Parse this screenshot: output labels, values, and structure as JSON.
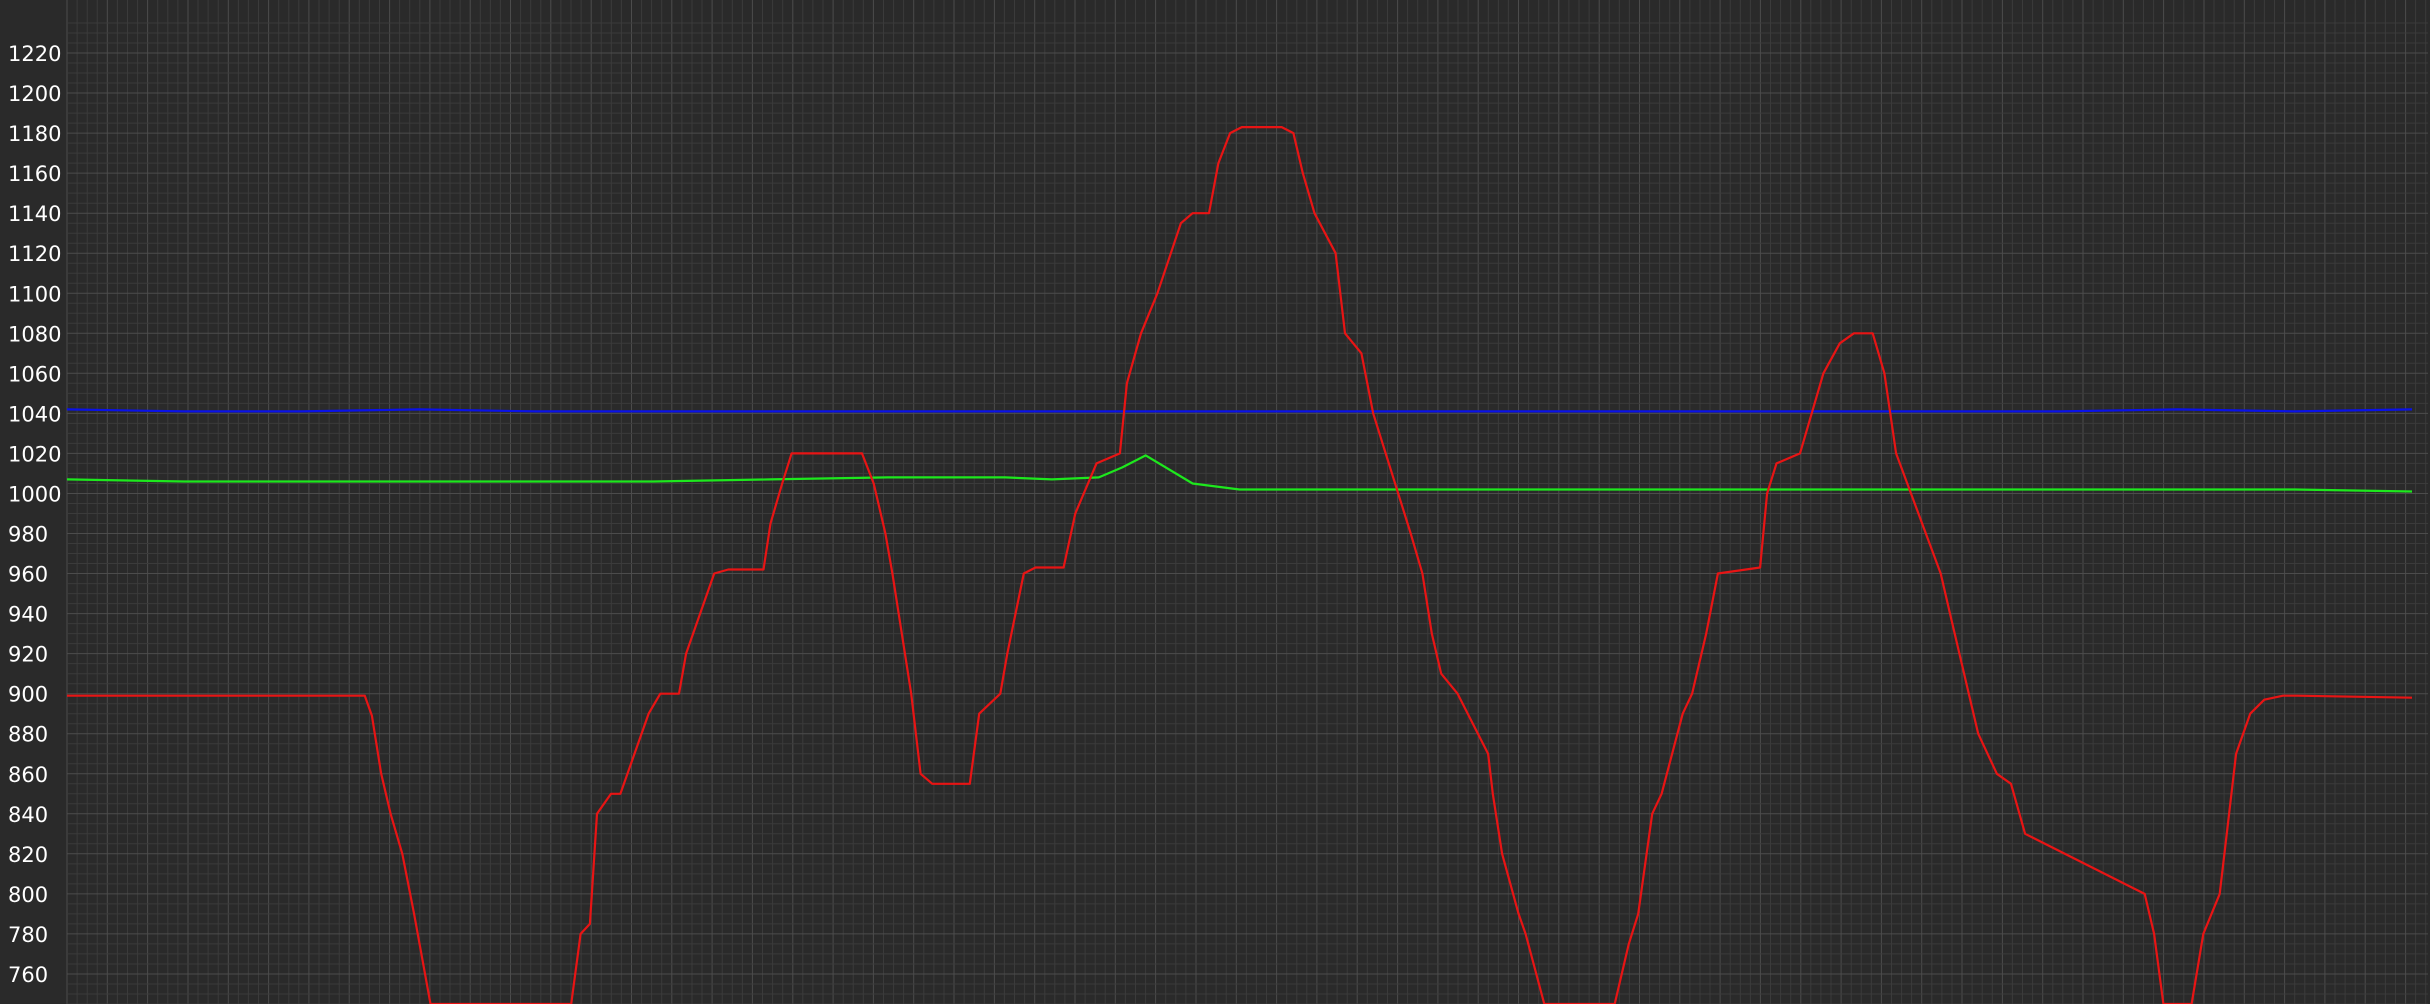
{
  "chart_data": {
    "type": "line",
    "title": "",
    "xlabel": "",
    "ylabel": "",
    "ylim": [
      745,
      1232
    ],
    "xlim": [
      0,
      1000
    ],
    "yticks": [
      760,
      780,
      800,
      820,
      840,
      860,
      880,
      900,
      920,
      940,
      960,
      980,
      1000,
      1020,
      1040,
      1060,
      1080,
      1100,
      1120,
      1140,
      1160,
      1180,
      1200,
      1220
    ],
    "grid": true,
    "legend": "none",
    "colors": {
      "background": "#2a2a2a",
      "grid": "#3b3b3b",
      "text": "#ffffff"
    },
    "series": [
      {
        "color": "#0a12e8",
        "x": [
          0,
          50,
          100,
          150,
          200,
          250,
          300,
          350,
          400,
          450,
          500,
          550,
          600,
          650,
          700,
          750,
          800,
          850,
          900,
          950,
          1000
        ],
        "y": [
          1042,
          1041,
          1041,
          1042,
          1041,
          1041,
          1041,
          1041,
          1041,
          1041,
          1041,
          1041,
          1041,
          1041,
          1041,
          1041,
          1041,
          1041,
          1042,
          1041,
          1042
        ]
      },
      {
        "color": "#1de81d",
        "x": [
          0,
          50,
          100,
          150,
          200,
          250,
          300,
          350,
          400,
          420,
          440,
          450,
          460,
          480,
          500,
          550,
          600,
          650,
          700,
          750,
          800,
          850,
          900,
          950,
          1000
        ],
        "y": [
          1007,
          1006,
          1006,
          1006,
          1006,
          1006,
          1007,
          1008,
          1008,
          1007,
          1008,
          1013,
          1019,
          1005,
          1002,
          1002,
          1002,
          1002,
          1002,
          1002,
          1002,
          1002,
          1002,
          1002,
          1001
        ]
      },
      {
        "color": "#e81414",
        "x": [
          0,
          127,
          130,
          134,
          138,
          143,
          148,
          155,
          160,
          166,
          215,
          219,
          223,
          226,
          232,
          236,
          248,
          253,
          261,
          264,
          276,
          282,
          297,
          300,
          305,
          309,
          318,
          323,
          327,
          335,
          339,
          344,
          349,
          352,
          360,
          364,
          369,
          385,
          389,
          398,
          401,
          408,
          413,
          425,
          430,
          439,
          449,
          452,
          458,
          465,
          475,
          480,
          487,
          491,
          496,
          501,
          518,
          523,
          527,
          532,
          541,
          545,
          552,
          557,
          573,
          578,
          582,
          586,
          593,
          606,
          608,
          612,
          619,
          622,
          630,
          638,
          660,
          666,
          670,
          676,
          680,
          689,
          693,
          699,
          704,
          722,
          725,
          729,
          739,
          744,
          749,
          756,
          762,
          767,
          770,
          775,
          780,
          799,
          803,
          811,
          815,
          823,
          829,
          835,
          886,
          890,
          894,
          900,
          906,
          911,
          918,
          922,
          925,
          931,
          937,
          945,
          951,
          1000
        ],
        "y": [
          899,
          899,
          889,
          860,
          840,
          820,
          790,
          745,
          745,
          745,
          745,
          780,
          785,
          840,
          850,
          850,
          890,
          900,
          900,
          920,
          960,
          962,
          962,
          985,
          1005,
          1020,
          1020,
          1020,
          1020,
          1020,
          1020,
          1005,
          980,
          960,
          900,
          860,
          855,
          855,
          890,
          900,
          920,
          960,
          963,
          963,
          990,
          1015,
          1020,
          1055,
          1080,
          1100,
          1135,
          1140,
          1140,
          1165,
          1180,
          1183,
          1183,
          1180,
          1160,
          1140,
          1120,
          1080,
          1070,
          1040,
          980,
          960,
          930,
          910,
          900,
          870,
          850,
          820,
          790,
          780,
          745,
          745,
          745,
          775,
          790,
          840,
          850,
          890,
          900,
          930,
          960,
          963,
          1000,
          1015,
          1020,
          1040,
          1060,
          1075,
          1080,
          1080,
          1080,
          1060,
          1020,
          960,
          940,
          900,
          880,
          860,
          855,
          830,
          800,
          780,
          745,
          745,
          745,
          780,
          800,
          840,
          870,
          890,
          897,
          899,
          899,
          898
        ]
      }
    ]
  }
}
